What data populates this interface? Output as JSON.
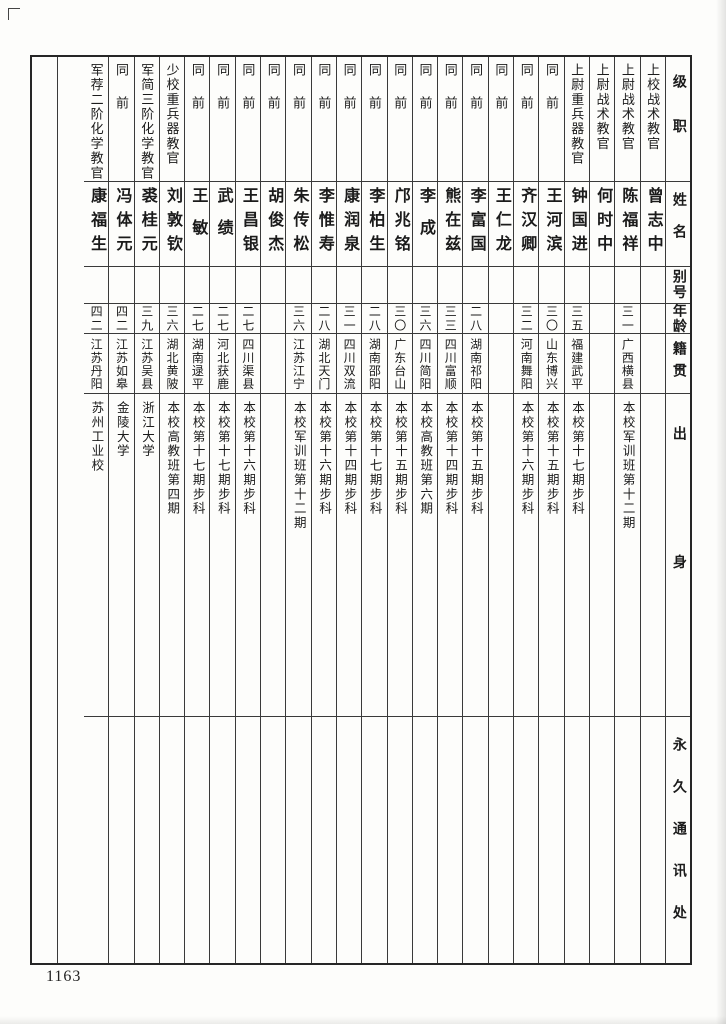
{
  "page_number": "1163",
  "table": {
    "header_labels": [
      "级职",
      "姓名",
      "别号",
      "年龄",
      "籍贯",
      "出身",
      "永久通讯处"
    ],
    "columns_left_to_right": [
      {
        "rank": "军荐二阶化学教官",
        "name": "康福生",
        "alias": "",
        "age": "四二",
        "native_place": "江苏丹阳",
        "origin": "苏州工业校",
        "address": ""
      },
      {
        "rank": "同前",
        "name": "冯体元",
        "alias": "",
        "age": "四二",
        "native_place": "江苏如皋",
        "origin": "金陵大学",
        "address": ""
      },
      {
        "rank": "军简三阶化学教官",
        "name": "裘桂元",
        "alias": "",
        "age": "三九",
        "native_place": "江苏吴县",
        "origin": "浙江大学",
        "address": ""
      },
      {
        "rank": "少校重兵器教官",
        "name": "刘敦钦",
        "alias": "",
        "age": "三六",
        "native_place": "湖北黄陂",
        "origin": "本校高教班第四期",
        "address": ""
      },
      {
        "rank": "同前",
        "name": "王敏",
        "alias": "",
        "age": "二七",
        "native_place": "湖南逯平",
        "origin": "本校第十七期步科",
        "address": ""
      },
      {
        "rank": "同前",
        "name": "武绩",
        "alias": "",
        "age": "二七",
        "native_place": "河北获鹿",
        "origin": "本校第十七期步科",
        "address": ""
      },
      {
        "rank": "同前",
        "name": "王昌银",
        "alias": "",
        "age": "二七",
        "native_place": "四川渠县",
        "origin": "本校第十六期步科",
        "address": ""
      },
      {
        "rank": "同前",
        "name": "胡俊杰",
        "alias": "",
        "age": "",
        "native_place": "",
        "origin": "",
        "address": ""
      },
      {
        "rank": "同前",
        "name": "朱传松",
        "alias": "",
        "age": "三六",
        "native_place": "江苏江宁",
        "origin": "本校军训班第十二期",
        "address": ""
      },
      {
        "rank": "同前",
        "name": "李惟寿",
        "alias": "",
        "age": "二八",
        "native_place": "湖北天门",
        "origin": "本校第十六期步科",
        "address": ""
      },
      {
        "rank": "同前",
        "name": "康润泉",
        "alias": "",
        "age": "三一",
        "native_place": "四川双流",
        "origin": "本校第十四期步科",
        "address": ""
      },
      {
        "rank": "同前",
        "name": "李柏生",
        "alias": "",
        "age": "二八",
        "native_place": "湖南邵阳",
        "origin": "本校第十七期步科",
        "address": ""
      },
      {
        "rank": "同前",
        "name": "邝兆铭",
        "alias": "",
        "age": "三〇",
        "native_place": "广东台山",
        "origin": "本校第十五期步科",
        "address": ""
      },
      {
        "rank": "同前",
        "name": "李成",
        "alias": "",
        "age": "三六",
        "native_place": "四川简阳",
        "origin": "本校高教班第六期",
        "address": ""
      },
      {
        "rank": "同前",
        "name": "熊在兹",
        "alias": "",
        "age": "三三",
        "native_place": "四川富顺",
        "origin": "本校第十四期步科",
        "address": ""
      },
      {
        "rank": "同前",
        "name": "李富国",
        "alias": "",
        "age": "二八",
        "native_place": "湖南祁阳",
        "origin": "本校第十五期步科",
        "address": ""
      },
      {
        "rank": "同前",
        "name": "王仁龙",
        "alias": "",
        "age": "",
        "native_place": "",
        "origin": "",
        "address": ""
      },
      {
        "rank": "同前",
        "name": "齐汉卿",
        "alias": "",
        "age": "三二",
        "native_place": "河南舞阳",
        "origin": "本校第十六期步科",
        "address": ""
      },
      {
        "rank": "同前",
        "name": "王河滨",
        "alias": "",
        "age": "三〇",
        "native_place": "山东博兴",
        "origin": "本校第十五期步科",
        "address": ""
      },
      {
        "rank": "上尉重兵器教官",
        "name": "钟国进",
        "alias": "",
        "age": "三五",
        "native_place": "福建武平",
        "origin": "本校第十七期步科",
        "address": ""
      },
      {
        "rank": "上尉战术教官",
        "name": "何时中",
        "alias": "",
        "age": "",
        "native_place": "",
        "origin": "",
        "address": ""
      },
      {
        "rank": "上尉战术教官",
        "name": "陈福祥",
        "alias": "",
        "age": "三一",
        "native_place": "广西横县",
        "origin": "本校军训班第十二期",
        "address": ""
      },
      {
        "rank": "上校战术教官",
        "name": "曾志中",
        "alias": "",
        "age": "",
        "native_place": "",
        "origin": "",
        "address": ""
      }
    ]
  }
}
